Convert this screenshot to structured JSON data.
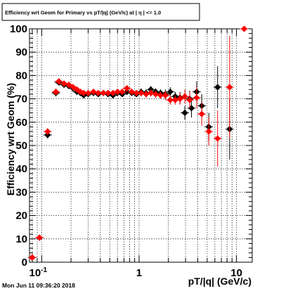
{
  "timestamp": "Mon Jun 11 09:36:20 2018",
  "colors": {
    "series_black": "#000000",
    "series_red": "#ff0000"
  },
  "chart_data": {
    "type": "scatter",
    "title": "Efficiency wrt Geom for Primary vs pT/|q| (GeV/c) at | η | <= 1.0",
    "xlabel": "pT/|q| (GeV/c)",
    "ylabel": "Efficiency wrt Geom (%)",
    "xscale": "log",
    "xlim": [
      0.075,
      14.5
    ],
    "ylim": [
      0,
      100
    ],
    "grid": true,
    "yticks": [
      "0",
      "10",
      "20",
      "30",
      "40",
      "50",
      "60",
      "70",
      "80",
      "90",
      "100"
    ],
    "xtick_labels": [
      {
        "x": 0.1,
        "main": "10",
        "exp": "-1"
      },
      {
        "x": 1,
        "main": "1",
        "exp": ""
      },
      {
        "x": 10,
        "main": "10",
        "exp": ""
      }
    ],
    "series": [
      {
        "color": "#000000",
        "points": [
          {
            "x": 0.08,
            "y": 2.0,
            "ye": 1.0
          },
          {
            "x": 0.095,
            "y": 10.5,
            "ye": 1.0
          },
          {
            "x": 0.115,
            "y": 54.5,
            "ye": 1.5
          },
          {
            "x": 0.14,
            "y": 72.5,
            "ye": 1.5
          },
          {
            "x": 0.15,
            "y": 77.0,
            "ye": 1.0
          },
          {
            "x": 0.17,
            "y": 76.0,
            "ye": 1.0
          },
          {
            "x": 0.19,
            "y": 75.5,
            "ye": 1.0
          },
          {
            "x": 0.21,
            "y": 74.5,
            "ye": 1.0
          },
          {
            "x": 0.23,
            "y": 73.0,
            "ye": 1.0
          },
          {
            "x": 0.25,
            "y": 72.5,
            "ye": 1.0
          },
          {
            "x": 0.27,
            "y": 71.5,
            "ye": 1.0
          },
          {
            "x": 0.3,
            "y": 72.0,
            "ye": 1.0
          },
          {
            "x": 0.34,
            "y": 72.5,
            "ye": 1.0
          },
          {
            "x": 0.38,
            "y": 72.0,
            "ye": 1.0
          },
          {
            "x": 0.43,
            "y": 72.5,
            "ye": 1.0
          },
          {
            "x": 0.48,
            "y": 72.0,
            "ye": 1.0
          },
          {
            "x": 0.54,
            "y": 71.5,
            "ye": 1.0
          },
          {
            "x": 0.6,
            "y": 72.5,
            "ye": 1.0
          },
          {
            "x": 0.67,
            "y": 72.0,
            "ye": 1.0
          },
          {
            "x": 0.75,
            "y": 73.0,
            "ye": 1.0
          },
          {
            "x": 0.84,
            "y": 72.5,
            "ye": 1.0
          },
          {
            "x": 0.94,
            "y": 72.0,
            "ye": 1.0
          },
          {
            "x": 1.05,
            "y": 73.0,
            "ye": 1.5
          },
          {
            "x": 1.18,
            "y": 72.5,
            "ye": 1.5
          },
          {
            "x": 1.32,
            "y": 74.0,
            "ye": 1.5
          },
          {
            "x": 1.48,
            "y": 73.0,
            "ye": 1.5
          },
          {
            "x": 1.66,
            "y": 72.5,
            "ye": 1.5
          },
          {
            "x": 1.86,
            "y": 72.0,
            "ye": 2.0
          },
          {
            "x": 2.09,
            "y": 73.0,
            "ye": 2.0
          },
          {
            "x": 2.35,
            "y": 71.0,
            "ye": 2.0
          },
          {
            "x": 2.63,
            "y": 70.5,
            "ye": 2.5
          },
          {
            "x": 2.95,
            "y": 64.0,
            "ye": 3.0
          },
          {
            "x": 3.31,
            "y": 70.0,
            "ye": 3.5
          },
          {
            "x": 3.45,
            "y": 66.0,
            "ye": 4.0
          },
          {
            "x": 3.9,
            "y": 73.0,
            "ye": 4.5
          },
          {
            "x": 4.4,
            "y": 67.0,
            "ye": 5.0
          },
          {
            "x": 5.2,
            "y": 58.0,
            "ye": 6.0
          },
          {
            "x": 6.4,
            "y": 75.0,
            "ye": 9.0
          },
          {
            "x": 8.5,
            "y": 57.0,
            "ye": 13.0
          }
        ]
      },
      {
        "color": "#ff0000",
        "points": [
          {
            "x": 0.08,
            "y": 2.0,
            "ye": 1.0
          },
          {
            "x": 0.095,
            "y": 10.5,
            "ye": 1.0
          },
          {
            "x": 0.115,
            "y": 56.0,
            "ye": 1.5
          },
          {
            "x": 0.14,
            "y": 73.0,
            "ye": 1.5
          },
          {
            "x": 0.15,
            "y": 77.5,
            "ye": 1.0
          },
          {
            "x": 0.17,
            "y": 76.5,
            "ye": 1.0
          },
          {
            "x": 0.19,
            "y": 76.0,
            "ye": 1.0
          },
          {
            "x": 0.21,
            "y": 75.0,
            "ye": 1.0
          },
          {
            "x": 0.23,
            "y": 74.0,
            "ye": 1.0
          },
          {
            "x": 0.25,
            "y": 73.0,
            "ye": 1.0
          },
          {
            "x": 0.27,
            "y": 72.5,
            "ye": 1.0
          },
          {
            "x": 0.3,
            "y": 72.5,
            "ye": 1.0
          },
          {
            "x": 0.34,
            "y": 73.0,
            "ye": 1.0
          },
          {
            "x": 0.38,
            "y": 72.5,
            "ye": 1.0
          },
          {
            "x": 0.43,
            "y": 72.5,
            "ye": 1.0
          },
          {
            "x": 0.48,
            "y": 72.5,
            "ye": 1.0
          },
          {
            "x": 0.54,
            "y": 72.5,
            "ye": 1.0
          },
          {
            "x": 0.6,
            "y": 73.0,
            "ye": 1.0
          },
          {
            "x": 0.67,
            "y": 73.0,
            "ye": 1.0
          },
          {
            "x": 0.75,
            "y": 74.5,
            "ye": 1.0
          },
          {
            "x": 0.84,
            "y": 73.0,
            "ye": 1.0
          },
          {
            "x": 0.94,
            "y": 72.5,
            "ye": 1.0
          },
          {
            "x": 1.05,
            "y": 72.5,
            "ye": 1.5
          },
          {
            "x": 1.18,
            "y": 72.0,
            "ye": 1.5
          },
          {
            "x": 1.32,
            "y": 72.5,
            "ye": 1.5
          },
          {
            "x": 1.48,
            "y": 72.0,
            "ye": 1.5
          },
          {
            "x": 1.66,
            "y": 71.5,
            "ye": 1.5
          },
          {
            "x": 1.86,
            "y": 71.5,
            "ye": 2.0
          },
          {
            "x": 2.09,
            "y": 69.5,
            "ye": 2.0
          },
          {
            "x": 2.35,
            "y": 69.5,
            "ye": 2.0
          },
          {
            "x": 2.63,
            "y": 70.0,
            "ye": 2.5
          },
          {
            "x": 2.95,
            "y": 71.0,
            "ye": 3.0
          },
          {
            "x": 3.31,
            "y": 69.5,
            "ye": 3.5
          },
          {
            "x": 3.9,
            "y": 70.5,
            "ye": 4.5
          },
          {
            "x": 4.4,
            "y": 63.5,
            "ye": 5.0
          },
          {
            "x": 5.2,
            "y": 56.0,
            "ye": 6.0
          },
          {
            "x": 6.4,
            "y": 53.0,
            "ye": 12.0
          },
          {
            "x": 8.5,
            "y": 75.0,
            "ye": 22.0
          },
          {
            "x": 12.0,
            "y": 100.0,
            "ye": 0.5
          }
        ]
      }
    ]
  }
}
